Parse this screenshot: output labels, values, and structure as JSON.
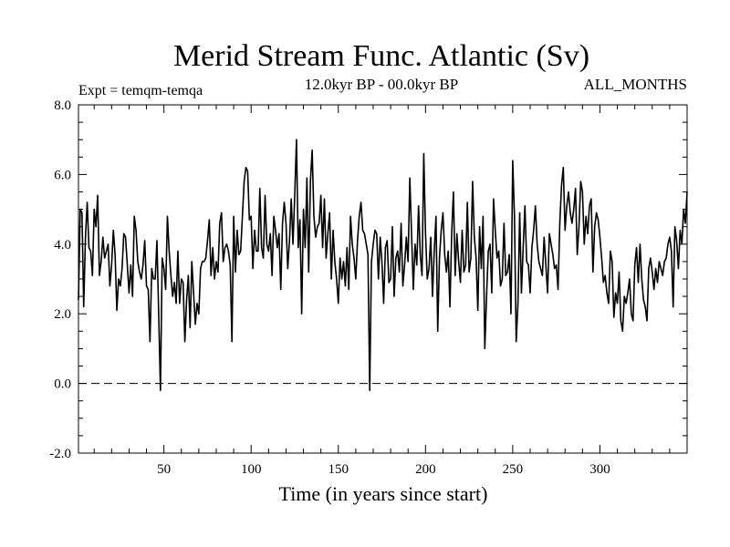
{
  "chart_data": {
    "type": "line",
    "title": "Merid Stream Func. Atlantic (Sv)",
    "subtitle_left": "Expt = temqm-temqa",
    "subtitle_center": "12.0kyr BP - 00.0kyr BP",
    "subtitle_right": "ALL_MONTHS",
    "xlabel": "Time (in years since start)",
    "ylabel": "",
    "xlim": [
      1,
      350
    ],
    "ylim": [
      -2,
      8
    ],
    "x_ticks": [
      50,
      100,
      150,
      200,
      250,
      300
    ],
    "y_ticks": [
      -2.0,
      0.0,
      2.0,
      4.0,
      6.0,
      8.0
    ],
    "y_tick_labels": [
      "-2.0",
      "0.0",
      "2.0",
      "4.0",
      "6.0",
      "8.0"
    ],
    "reference_line": {
      "y": 0.0,
      "style": "dashed"
    },
    "series": [
      {
        "name": "Merid Stream Func.",
        "x_start": 1,
        "x_step": 1,
        "values": [
          2.4,
          5.0,
          4.9,
          2.2,
          4.2,
          5.2,
          3.9,
          3.8,
          3.1,
          5.0,
          4.5,
          5.4,
          3.1,
          3.5,
          4.2,
          3.6,
          3.8,
          4.0,
          2.8,
          3.4,
          4.4,
          3.7,
          2.1,
          3.0,
          2.8,
          3.3,
          4.3,
          4.2,
          3.4,
          2.6,
          3.4,
          2.5,
          4.8,
          4.4,
          3.5,
          3.2,
          3.0,
          3.4,
          4.1,
          2.8,
          2.7,
          1.2,
          3.3,
          3.0,
          3.0,
          4.1,
          2.0,
          -0.2,
          3.6,
          3.3,
          2.7,
          4.8,
          3.8,
          3.1,
          2.5,
          2.9,
          2.3,
          3.8,
          2.3,
          3.0,
          2.9,
          1.2,
          2.4,
          3.1,
          1.6,
          3.5,
          2.6,
          1.7,
          2.3,
          2.0,
          3.3,
          3.5,
          3.5,
          3.6,
          4.1,
          4.7,
          3.1,
          3.9,
          3.0,
          3.5,
          3.2,
          4.6,
          4.9,
          3.5,
          3.9,
          4.0,
          3.8,
          3.4,
          1.2,
          4.8,
          3.2,
          4.4,
          3.7,
          3.8,
          4.8,
          5.8,
          6.2,
          6.1,
          4.7,
          4.8,
          3.3,
          4.4,
          3.8,
          3.8,
          5.6,
          3.9,
          3.6,
          5.4,
          4.0,
          3.8,
          4.3,
          3.1,
          4.8,
          4.4,
          3.9,
          4.3,
          2.7,
          4.6,
          5.2,
          4.6,
          3.3,
          4.1,
          5.3,
          4.0,
          5.4,
          7.0,
          3.9,
          4.7,
          2.0,
          5.0,
          3.9,
          5.9,
          3.2,
          5.8,
          6.7,
          4.8,
          4.2,
          4.5,
          4.6,
          5.4,
          3.9,
          5.3,
          3.6,
          4.3,
          4.9,
          3.0,
          4.4,
          3.5,
          3.0,
          2.3,
          3.6,
          3.0,
          3.5,
          2.8,
          3.9,
          2.7,
          4.8,
          4.0,
          3.6,
          3.0,
          4.1,
          4.8,
          5.2,
          4.4,
          4.3,
          4.0,
          3.7,
          -0.2,
          3.5,
          4.0,
          4.4,
          4.3,
          3.0,
          4.2,
          3.5,
          2.3,
          3.9,
          4.1,
          2.9,
          3.0,
          4.5,
          2.5,
          3.6,
          3.8,
          3.2,
          4.6,
          2.8,
          3.4,
          4.2,
          3.5,
          5.9,
          4.3,
          2.7,
          4.0,
          3.4,
          5.1,
          3.7,
          3.1,
          6.6,
          4.3,
          3.0,
          3.3,
          4.2,
          2.5,
          3.8,
          4.8,
          1.5,
          3.6,
          4.4,
          4.9,
          3.7,
          3.2,
          3.8,
          2.2,
          4.3,
          5.5,
          3.1,
          4.3,
          3.5,
          2.9,
          4.4,
          3.2,
          3.4,
          5.2,
          3.2,
          3.6,
          5.8,
          4.2,
          3.6,
          2.1,
          4.5,
          3.3,
          4.8,
          1.0,
          2.5,
          3.8,
          4.0,
          2.6,
          5.3,
          4.4,
          3.6,
          3.8,
          2.8,
          3.0,
          4.6,
          3.1,
          3.2,
          3.7,
          2.0,
          6.4,
          4.8,
          1.2,
          2.3,
          4.9,
          2.6,
          3.9,
          5.1,
          3.5,
          3.4,
          2.6,
          3.9,
          4.4,
          5.1,
          4.0,
          3.5,
          3.3,
          3.1,
          4.2,
          3.4,
          2.6,
          4.3,
          4.0,
          3.7,
          3.3,
          3.4,
          2.7,
          4.6,
          5.7,
          6.2,
          4.4,
          5.1,
          5.5,
          4.9,
          4.6,
          5.0,
          5.6,
          3.7,
          4.5,
          5.8,
          5.5,
          4.0,
          4.8,
          4.3,
          5.1,
          5.3,
          3.2,
          4.5,
          4.9,
          4.7,
          4.2,
          3.6,
          2.9,
          3.1,
          2.6,
          2.3,
          3.8,
          3.5,
          1.9,
          2.6,
          2.3,
          3.2,
          1.8,
          1.5,
          2.5,
          2.3,
          2.6,
          3.0,
          2.0,
          1.8,
          3.4,
          3.9,
          2.9,
          4.0,
          3.0,
          2.4,
          2.2,
          1.8,
          3.3,
          3.6,
          3.2,
          2.7,
          3.3,
          2.9,
          3.5,
          3.3,
          3.1,
          3.5,
          3.6,
          4.0,
          4.2,
          3.8,
          2.2,
          4.5,
          4.1,
          3.3,
          4.4,
          4.0,
          5.0,
          4.6,
          5.5
        ]
      }
    ]
  }
}
